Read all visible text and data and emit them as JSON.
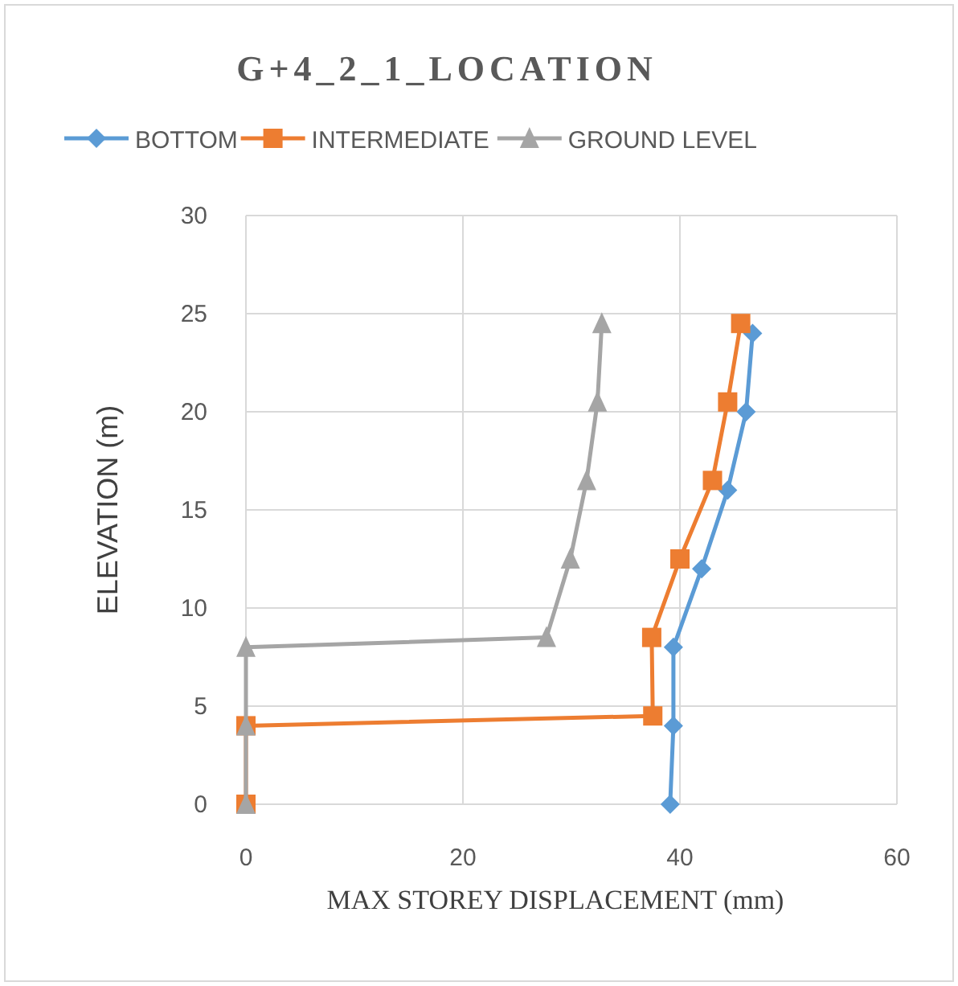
{
  "chart_data": {
    "type": "line",
    "title": "G+4_2_1_LOCATION",
    "xlabel": "MAX STOREY DISPLACEMENT (mm)",
    "ylabel": "ELEVATION (m)",
    "xlim": [
      0,
      60
    ],
    "xticks": [
      0,
      20,
      40,
      60
    ],
    "ylim": [
      0,
      30
    ],
    "yticks": [
      0,
      5,
      10,
      15,
      20,
      25,
      30
    ],
    "grid": true,
    "legend": "top",
    "series": [
      {
        "name": "BOTTOM",
        "color": "#5b9bd5",
        "marker": "diamond",
        "x": [
          39.1,
          39.4,
          39.4,
          42,
          44.4,
          46.1,
          46.7
        ],
        "values": [
          0,
          4,
          8,
          12,
          16,
          20,
          24
        ]
      },
      {
        "name": "INTERMEDIATE",
        "color": "#ed7d31",
        "marker": "square",
        "x": [
          0,
          0,
          37.5,
          37.4,
          40,
          43,
          44.4,
          45.6
        ],
        "values": [
          0,
          4,
          4.5,
          8.5,
          12.5,
          16.5,
          20.5,
          24.5
        ]
      },
      {
        "name": "GROUND LEVEL",
        "color": "#a5a5a5",
        "marker": "triangle",
        "x": [
          0,
          0,
          0,
          27.7,
          29.9,
          31.4,
          32.4,
          32.8
        ],
        "values": [
          0,
          4,
          8,
          8.5,
          12.5,
          16.5,
          20.5,
          24.5
        ]
      }
    ]
  }
}
